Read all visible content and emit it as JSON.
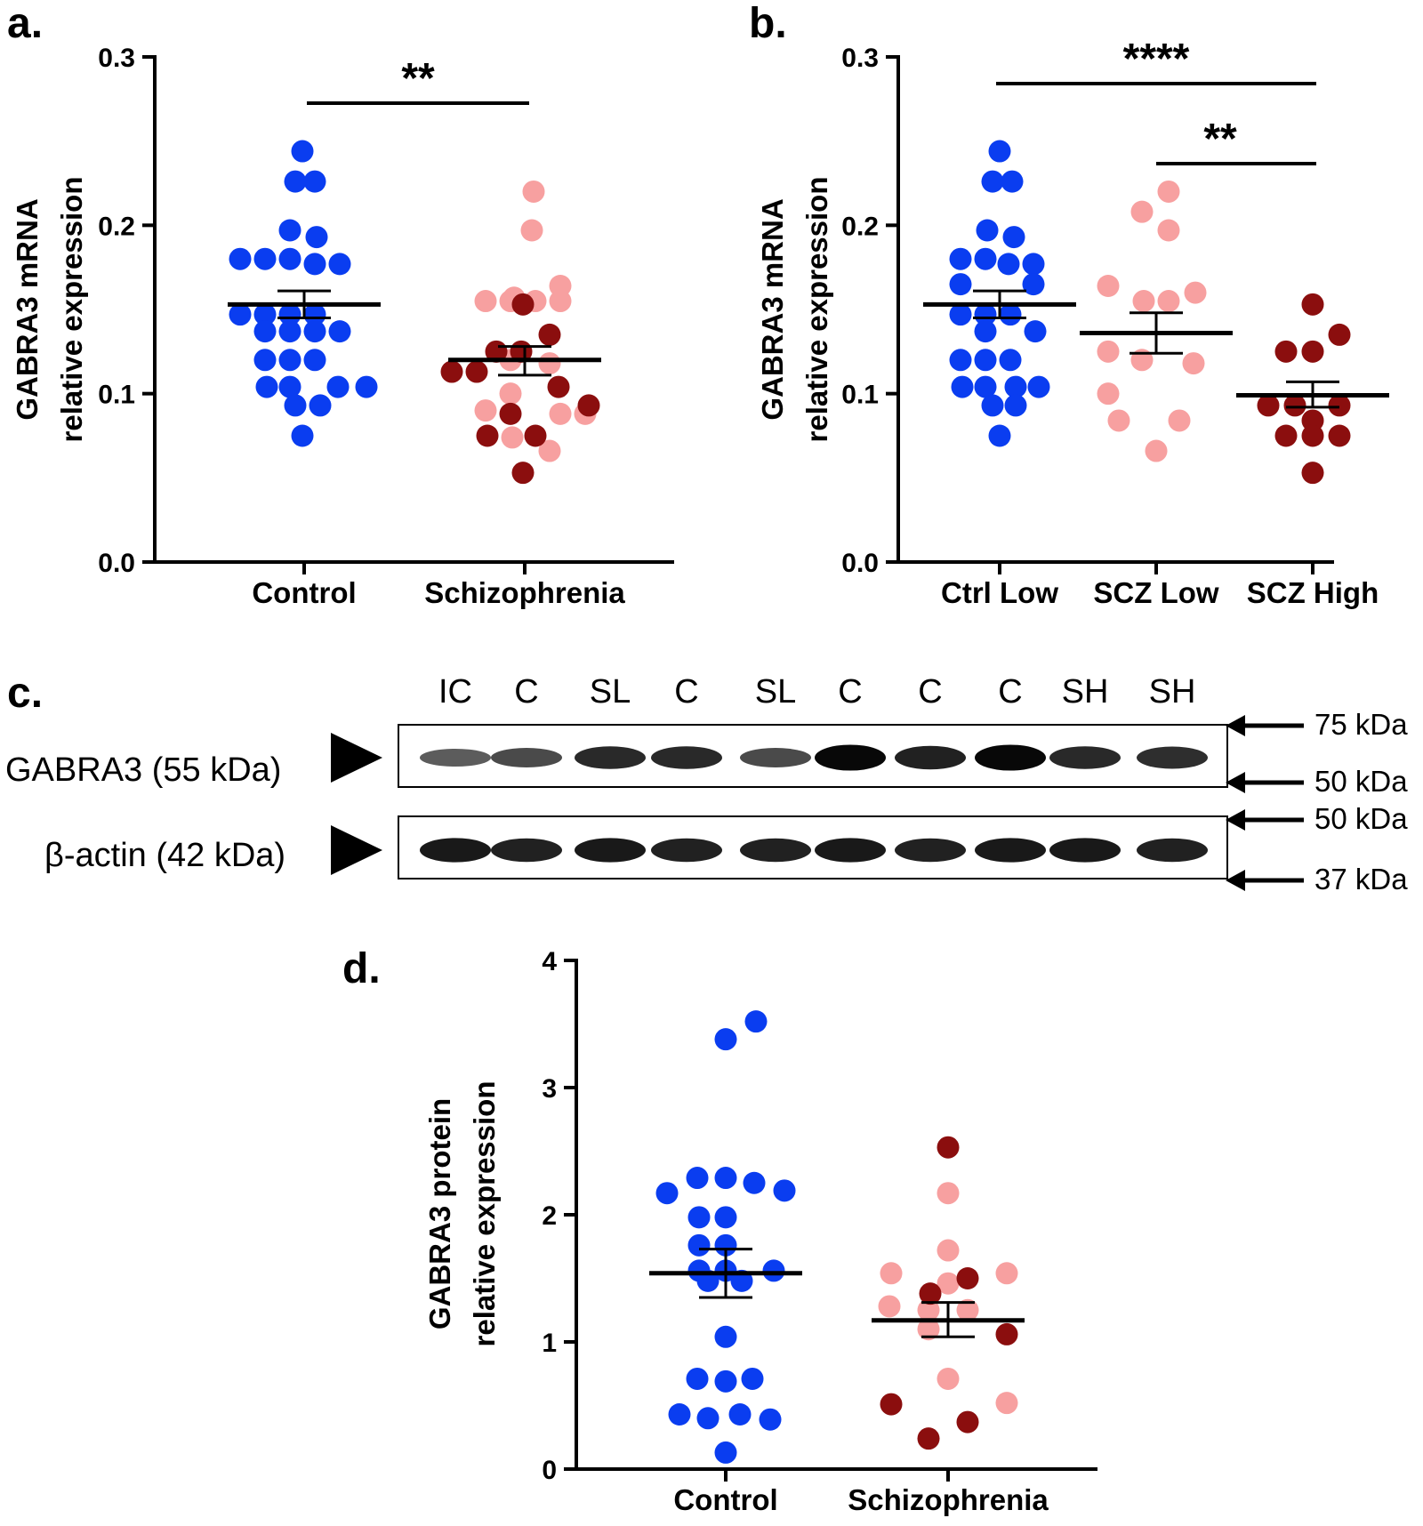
{
  "colors": {
    "control": "#0a3df0",
    "scz_low": "#f7a0a0",
    "scz_high": "#8b0e0e",
    "axis": "#000000"
  },
  "panels": {
    "a": {
      "label": "a."
    },
    "b": {
      "label": "b."
    },
    "c": {
      "label": "c."
    },
    "d": {
      "label": "d."
    }
  },
  "chart_data": [
    {
      "id": "a",
      "type": "scatter",
      "ylabel": [
        "GABRA3 mRNA",
        "relative expression"
      ],
      "ylim": [
        0,
        0.3
      ],
      "yticks": [
        "0.0",
        "0.1",
        "0.2",
        "0.3"
      ],
      "categories": [
        "Control",
        "Schizophrenia"
      ],
      "groups": [
        {
          "category": "Control",
          "color_key": "control",
          "points": [
            [
              -2,
              0.244
            ],
            [
              -10,
              0.226
            ],
            [
              12,
              0.226
            ],
            [
              -16,
              0.197
            ],
            [
              14,
              0.193
            ],
            [
              -72,
              0.18
            ],
            [
              -44,
              0.18
            ],
            [
              -16,
              0.18
            ],
            [
              12,
              0.177
            ],
            [
              40,
              0.177
            ],
            [
              -72,
              0.147
            ],
            [
              -44,
              0.147
            ],
            [
              -16,
              0.147
            ],
            [
              12,
              0.147
            ],
            [
              -44,
              0.137
            ],
            [
              -16,
              0.137
            ],
            [
              12,
              0.137
            ],
            [
              40,
              0.137
            ],
            [
              -44,
              0.12
            ],
            [
              -16,
              0.12
            ],
            [
              12,
              0.12
            ],
            [
              -42,
              0.104
            ],
            [
              -16,
              0.104
            ],
            [
              38,
              0.104
            ],
            [
              70,
              0.104
            ],
            [
              -10,
              0.093
            ],
            [
              18,
              0.093
            ],
            [
              -2,
              0.075
            ]
          ],
          "mean": 0.153,
          "sem_low": 0.145,
          "sem_high": 0.161
        },
        {
          "category": "Schizophrenia",
          "color_key": "scz_low",
          "points": [
            [
              10,
              0.22
            ],
            [
              8,
              0.197
            ],
            [
              -12,
              0.157
            ],
            [
              40,
              0.164
            ],
            [
              -44,
              0.155
            ],
            [
              -16,
              0.155
            ],
            [
              12,
              0.155
            ],
            [
              40,
              0.155
            ],
            [
              -16,
              0.12
            ],
            [
              28,
              0.118
            ],
            [
              -16,
              0.1
            ],
            [
              -44,
              0.09
            ],
            [
              40,
              0.088
            ],
            [
              68,
              0.088
            ],
            [
              -14,
              0.074
            ],
            [
              28,
              0.066
            ]
          ],
          "mean": 0.12,
          "sem_low": 0.111,
          "sem_high": 0.128
        },
        {
          "category": "Schizophrenia",
          "color_key": "scz_high",
          "points": [
            [
              -2,
              0.153
            ],
            [
              28,
              0.135
            ],
            [
              -32,
              0.125
            ],
            [
              -4,
              0.125
            ],
            [
              -82,
              0.113
            ],
            [
              -54,
              0.113
            ],
            [
              38,
              0.104
            ],
            [
              72,
              0.093
            ],
            [
              -16,
              0.088
            ],
            [
              -42,
              0.075
            ],
            [
              12,
              0.075
            ],
            [
              -2,
              0.053
            ]
          ]
        }
      ],
      "significance": [
        {
          "from": "Control",
          "to": "Schizophrenia",
          "label": "**"
        }
      ]
    },
    {
      "id": "b",
      "type": "scatter",
      "ylabel": [
        "GABRA3 mRNA",
        "relative expression"
      ],
      "ylim": [
        0,
        0.3
      ],
      "yticks": [
        "0.0",
        "0.1",
        "0.2",
        "0.3"
      ],
      "categories": [
        "Ctrl Low",
        "SCZ Low",
        "SCZ High"
      ],
      "groups": [
        {
          "category": "Ctrl Low",
          "color_key": "control",
          "points": [
            [
              0,
              0.244
            ],
            [
              -8,
              0.226
            ],
            [
              14,
              0.226
            ],
            [
              -14,
              0.197
            ],
            [
              16,
              0.193
            ],
            [
              -44,
              0.18
            ],
            [
              -16,
              0.18
            ],
            [
              10,
              0.177
            ],
            [
              38,
              0.177
            ],
            [
              -44,
              0.165
            ],
            [
              38,
              0.165
            ],
            [
              -44,
              0.147
            ],
            [
              -16,
              0.147
            ],
            [
              12,
              0.147
            ],
            [
              -16,
              0.137
            ],
            [
              40,
              0.137
            ],
            [
              -44,
              0.12
            ],
            [
              -16,
              0.12
            ],
            [
              12,
              0.12
            ],
            [
              -42,
              0.104
            ],
            [
              -16,
              0.104
            ],
            [
              18,
              0.104
            ],
            [
              44,
              0.104
            ],
            [
              -8,
              0.093
            ],
            [
              18,
              0.093
            ],
            [
              0,
              0.075
            ]
          ],
          "mean": 0.153,
          "sem_low": 0.145,
          "sem_high": 0.161
        },
        {
          "category": "SCZ Low",
          "color_key": "scz_low",
          "points": [
            [
              14,
              0.22
            ],
            [
              -16,
              0.208
            ],
            [
              14,
              0.197
            ],
            [
              -54,
              0.164
            ],
            [
              -14,
              0.155
            ],
            [
              14,
              0.155
            ],
            [
              44,
              0.16
            ],
            [
              -54,
              0.125
            ],
            [
              -16,
              0.12
            ],
            [
              42,
              0.118
            ],
            [
              -54,
              0.1
            ],
            [
              -42,
              0.084
            ],
            [
              26,
              0.084
            ],
            [
              0,
              0.066
            ]
          ],
          "mean": 0.136,
          "sem_low": 0.124,
          "sem_high": 0.148
        },
        {
          "category": "SCZ High",
          "color_key": "scz_high",
          "points": [
            [
              0,
              0.153
            ],
            [
              30,
              0.135
            ],
            [
              -30,
              0.125
            ],
            [
              0,
              0.125
            ],
            [
              -50,
              0.093
            ],
            [
              -20,
              0.093
            ],
            [
              0,
              0.084
            ],
            [
              30,
              0.093
            ],
            [
              -30,
              0.075
            ],
            [
              0,
              0.075
            ],
            [
              30,
              0.075
            ],
            [
              0,
              0.053
            ]
          ],
          "mean": 0.099,
          "sem_low": 0.092,
          "sem_high": 0.107
        }
      ],
      "significance": [
        {
          "from": "Ctrl Low",
          "to": "SCZ High",
          "label": "****"
        },
        {
          "from": "SCZ Low",
          "to": "SCZ High",
          "label": "**"
        }
      ]
    },
    {
      "id": "d",
      "type": "scatter",
      "ylabel": [
        "GABRA3 protein",
        "relative expression"
      ],
      "ylim": [
        0,
        4
      ],
      "yticks": [
        "0",
        "1",
        "2",
        "3",
        "4"
      ],
      "categories": [
        "Control",
        "Schizophrenia"
      ],
      "groups": [
        {
          "category": "Control",
          "color_key": "control",
          "points": [
            [
              34,
              3.52
            ],
            [
              0,
              3.38
            ],
            [
              -32,
              2.29
            ],
            [
              0,
              2.29
            ],
            [
              32,
              2.25
            ],
            [
              -66,
              2.17
            ],
            [
              66,
              2.19
            ],
            [
              -30,
              1.98
            ],
            [
              0,
              1.98
            ],
            [
              -30,
              1.76
            ],
            [
              0,
              1.76
            ],
            [
              -30,
              1.56
            ],
            [
              0,
              1.56
            ],
            [
              54,
              1.56
            ],
            [
              -20,
              1.48
            ],
            [
              18,
              1.48
            ],
            [
              0,
              1.04
            ],
            [
              -32,
              0.71
            ],
            [
              0,
              0.69
            ],
            [
              30,
              0.71
            ],
            [
              -52,
              0.43
            ],
            [
              -20,
              0.4
            ],
            [
              16,
              0.43
            ],
            [
              50,
              0.39
            ],
            [
              0,
              0.13
            ]
          ],
          "mean": 1.54,
          "sem_low": 1.35,
          "sem_high": 1.73
        },
        {
          "category": "Schizophrenia",
          "color_key": "scz_low",
          "points": [
            [
              0,
              2.17
            ],
            [
              0,
              1.72
            ],
            [
              -64,
              1.54
            ],
            [
              66,
              1.54
            ],
            [
              0,
              1.46
            ],
            [
              -66,
              1.28
            ],
            [
              -22,
              1.25
            ],
            [
              22,
              1.25
            ],
            [
              -22,
              1.1
            ],
            [
              0,
              0.71
            ],
            [
              66,
              0.52
            ]
          ],
          "mean": 1.17,
          "sem_low": 1.04,
          "sem_high": 1.31
        },
        {
          "category": "Schizophrenia",
          "color_key": "scz_high",
          "points": [
            [
              0,
              2.53
            ],
            [
              22,
              1.5
            ],
            [
              -20,
              1.38
            ],
            [
              66,
              1.06
            ],
            [
              -64,
              0.51
            ],
            [
              -22,
              0.24
            ],
            [
              22,
              0.37
            ]
          ]
        }
      ]
    }
  ],
  "western_blot": {
    "lanes": [
      "IC",
      "C",
      "SL",
      "C",
      "SL",
      "C",
      "C",
      "C",
      "SH",
      "SH"
    ],
    "rows": [
      {
        "label": "GABRA3 (55 kDa)",
        "intensity": [
          0.45,
          0.55,
          0.75,
          0.75,
          0.55,
          0.95,
          0.8,
          0.95,
          0.75,
          0.72
        ]
      },
      {
        "label": "β-actin (42 kDa)",
        "intensity": [
          0.85,
          0.8,
          0.85,
          0.8,
          0.8,
          0.85,
          0.8,
          0.85,
          0.85,
          0.8
        ]
      }
    ],
    "markers": [
      "75 kDa",
      "50 kDa",
      "50 kDa",
      "37 kDa"
    ]
  }
}
